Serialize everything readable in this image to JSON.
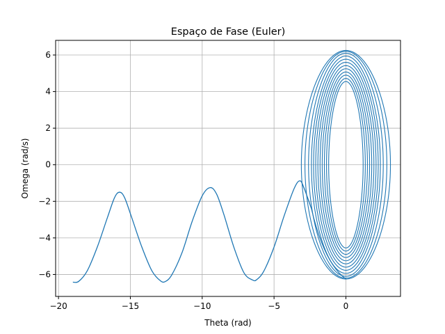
{
  "chart_data": {
    "type": "line",
    "title": "Espaço de Fase (Euler)",
    "xlabel": "Theta (rad)",
    "ylabel": "Omega (rad/s)",
    "xlim": [
      -20.2,
      3.8
    ],
    "ylim": [
      -7.2,
      6.8
    ],
    "x_ticks": [
      -20,
      -15,
      -10,
      -5,
      0
    ],
    "x_tick_labels": [
      "−20",
      "−15",
      "−10",
      "−5",
      "0"
    ],
    "y_ticks": [
      -6,
      -4,
      -2,
      0,
      2,
      4,
      6
    ],
    "y_tick_labels": [
      "−6",
      "−4",
      "−2",
      "0",
      "2",
      "4",
      "6"
    ],
    "grid": true,
    "line_color": "#1f77b4",
    "grid_color": "#b0b0b0",
    "series": [
      {
        "role": "rolling-trajectory",
        "points": [
          [
            -19.0,
            -6.42
          ],
          [
            -18.6,
            -6.38
          ],
          [
            -18.0,
            -5.8
          ],
          [
            -17.3,
            -4.5
          ],
          [
            -16.6,
            -2.9
          ],
          [
            -16.1,
            -1.8
          ],
          [
            -15.75,
            -1.5
          ],
          [
            -15.4,
            -1.8
          ],
          [
            -14.9,
            -2.9
          ],
          [
            -14.2,
            -4.5
          ],
          [
            -13.5,
            -5.8
          ],
          [
            -12.9,
            -6.35
          ],
          [
            -12.55,
            -6.38
          ],
          [
            -12.1,
            -6.0
          ],
          [
            -11.4,
            -4.8
          ],
          [
            -10.7,
            -3.1
          ],
          [
            -10.0,
            -1.7
          ],
          [
            -9.45,
            -1.25
          ],
          [
            -9.0,
            -1.6
          ],
          [
            -8.5,
            -2.7
          ],
          [
            -7.8,
            -4.5
          ],
          [
            -7.1,
            -5.9
          ],
          [
            -6.5,
            -6.3
          ],
          [
            -6.2,
            -6.28
          ],
          [
            -5.7,
            -5.8
          ],
          [
            -5.0,
            -4.5
          ],
          [
            -4.3,
            -2.8
          ],
          [
            -3.6,
            -1.3
          ],
          [
            -3.2,
            -0.88
          ],
          [
            -2.9,
            -1.3
          ],
          [
            -2.4,
            -2.4
          ]
        ]
      }
    ],
    "ellipse_rings": [
      {
        "theta_max": 1.2,
        "omega_max": 4.55
      },
      {
        "theta_max": 1.35,
        "omega_max": 4.72
      },
      {
        "theta_max": 1.5,
        "omega_max": 4.9
      },
      {
        "theta_max": 1.65,
        "omega_max": 5.07
      },
      {
        "theta_max": 1.8,
        "omega_max": 5.25
      },
      {
        "theta_max": 1.95,
        "omega_max": 5.42
      },
      {
        "theta_max": 2.1,
        "omega_max": 5.6
      },
      {
        "theta_max": 2.25,
        "omega_max": 5.77
      },
      {
        "theta_max": 2.4,
        "omega_max": 5.94
      },
      {
        "theta_max": 2.6,
        "omega_max": 6.1
      },
      {
        "theta_max": 2.85,
        "omega_max": 6.2
      },
      {
        "theta_max": 3.1,
        "omega_max": 6.25
      }
    ]
  }
}
